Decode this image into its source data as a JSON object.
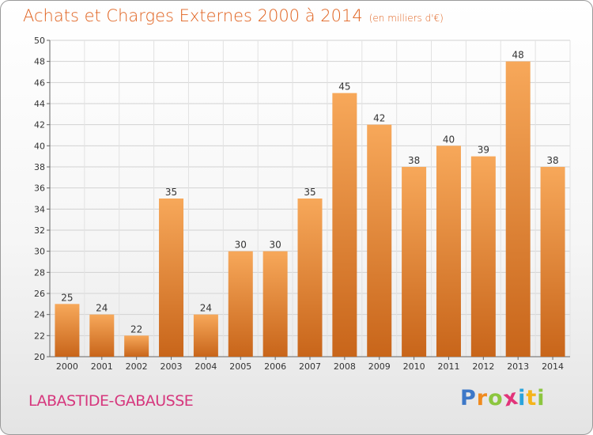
{
  "header": {
    "title": "Achats et Charges Externes 2000 à 2014",
    "unit": "(en milliers d'€)"
  },
  "footer": {
    "location": "LABASTIDE-GABAUSSE",
    "logo_text": "Proxiti"
  },
  "colors": {
    "bar_light": "#f7a85a",
    "bar_dark": "#c8651a",
    "title": "#e0621f",
    "location": "#d6377d"
  },
  "chart_data": {
    "type": "bar",
    "title": "Achats et Charges Externes 2000 à 2014",
    "subtitle": "(en milliers d'€)",
    "categories": [
      "2000",
      "2001",
      "2002",
      "2003",
      "2004",
      "2005",
      "2006",
      "2007",
      "2008",
      "2009",
      "2010",
      "2011",
      "2012",
      "2013",
      "2014"
    ],
    "values": [
      25,
      24,
      22,
      35,
      24,
      30,
      30,
      35,
      45,
      42,
      38,
      40,
      39,
      48,
      38
    ],
    "ylim": [
      20,
      50
    ],
    "yticks": [
      20,
      22,
      24,
      26,
      28,
      30,
      32,
      34,
      36,
      38,
      40,
      42,
      44,
      46,
      48,
      50
    ],
    "grid": true,
    "xlabel": "",
    "ylabel": ""
  }
}
